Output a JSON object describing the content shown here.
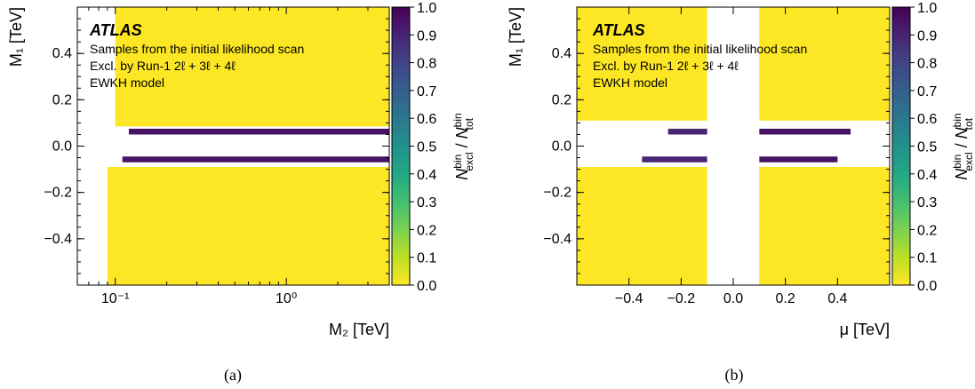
{
  "chart_data": [
    {
      "type": "heatmap",
      "panel_label": "(a)",
      "xlabel": "M₂ [TeV]",
      "ylabel": "M₁ [TeV]",
      "x_scale": "log",
      "xlim": [
        0.06,
        4.0
      ],
      "ylim": [
        -0.6,
        0.6
      ],
      "x_ticks": [
        {
          "value": 0.1,
          "label": "10⁻¹"
        },
        {
          "value": 1,
          "label": "10⁰"
        }
      ],
      "y_ticks": [
        {
          "value": 0.4,
          "label": "0.4"
        },
        {
          "value": 0.2,
          "label": "0.2"
        },
        {
          "value": 0.0,
          "label": "0.0"
        },
        {
          "value": -0.2,
          "label": "−0.2"
        },
        {
          "value": -0.4,
          "label": "−0.4"
        }
      ],
      "annotation": {
        "brand": "ATLAS",
        "lines": [
          "Samples from the initial likelihood scan",
          "Excl. by Run-1 2ℓ + 3ℓ + 4ℓ",
          "EWKH model"
        ]
      },
      "colorbar": {
        "label": "N^bin_excl / N^bin_tot",
        "range": [
          0.0,
          1.0
        ],
        "ticks": [
          "0.0",
          "0.1",
          "0.2",
          "0.3",
          "0.4",
          "0.5",
          "0.6",
          "0.7",
          "0.8",
          "0.9",
          "1.0"
        ]
      },
      "regions": [
        {
          "x": [
            0.09,
            4.0
          ],
          "y": [
            -0.6,
            -0.09
          ],
          "value": 0.0
        },
        {
          "x": [
            0.1,
            4.0
          ],
          "y": [
            0.11,
            0.6
          ],
          "value": 0.0
        },
        {
          "x": [
            0.1,
            4.0
          ],
          "y": [
            0.085,
            0.11
          ],
          "value": 0.0
        },
        {
          "x": [
            0.12,
            4.0
          ],
          "y": [
            0.05,
            0.075
          ],
          "value": 0.95
        },
        {
          "x": [
            0.11,
            4.0
          ],
          "y": [
            -0.07,
            -0.045
          ],
          "value": 0.95
        }
      ]
    },
    {
      "type": "heatmap",
      "panel_label": "(b)",
      "xlabel": "μ [TeV]",
      "ylabel": "M₁ [TeV]",
      "x_scale": "linear",
      "xlim": [
        -0.6,
        0.6
      ],
      "ylim": [
        -0.6,
        0.6
      ],
      "x_ticks": [
        {
          "value": -0.4,
          "label": "−0.4"
        },
        {
          "value": -0.2,
          "label": "−0.2"
        },
        {
          "value": 0.0,
          "label": "0.0"
        },
        {
          "value": 0.2,
          "label": "0.2"
        },
        {
          "value": 0.4,
          "label": "0.4"
        }
      ],
      "y_ticks": [
        {
          "value": 0.4,
          "label": "0.4"
        },
        {
          "value": 0.2,
          "label": "0.2"
        },
        {
          "value": 0.0,
          "label": "0.0"
        },
        {
          "value": -0.2,
          "label": "−0.2"
        },
        {
          "value": -0.4,
          "label": "−0.4"
        }
      ],
      "annotation": {
        "brand": "ATLAS",
        "lines": [
          "Samples from the initial likelihood scan",
          "Excl. by Run-1 2ℓ + 3ℓ + 4ℓ",
          "EWKH model"
        ]
      },
      "colorbar": {
        "label": "N^bin_excl / N^bin_tot",
        "range": [
          0.0,
          1.0
        ],
        "ticks": [
          "0.0",
          "0.1",
          "0.2",
          "0.3",
          "0.4",
          "0.5",
          "0.6",
          "0.7",
          "0.8",
          "0.9",
          "1.0"
        ]
      },
      "regions": [
        {
          "x": [
            -0.6,
            -0.1
          ],
          "y": [
            0.11,
            0.6
          ],
          "value": 0.0
        },
        {
          "x": [
            0.1,
            0.6
          ],
          "y": [
            0.11,
            0.6
          ],
          "value": 0.0
        },
        {
          "x": [
            -0.6,
            -0.1
          ],
          "y": [
            -0.6,
            -0.09
          ],
          "value": 0.0
        },
        {
          "x": [
            0.1,
            0.6
          ],
          "y": [
            -0.6,
            -0.09
          ],
          "value": 0.0
        },
        {
          "x": [
            -0.25,
            -0.1
          ],
          "y": [
            0.05,
            0.075
          ],
          "value": 0.9
        },
        {
          "x": [
            0.1,
            0.45
          ],
          "y": [
            0.05,
            0.075
          ],
          "value": 0.95
        },
        {
          "x": [
            -0.35,
            -0.1
          ],
          "y": [
            -0.07,
            -0.045
          ],
          "value": 0.9
        },
        {
          "x": [
            0.1,
            0.4
          ],
          "y": [
            -0.07,
            -0.045
          ],
          "value": 0.95
        }
      ]
    }
  ]
}
